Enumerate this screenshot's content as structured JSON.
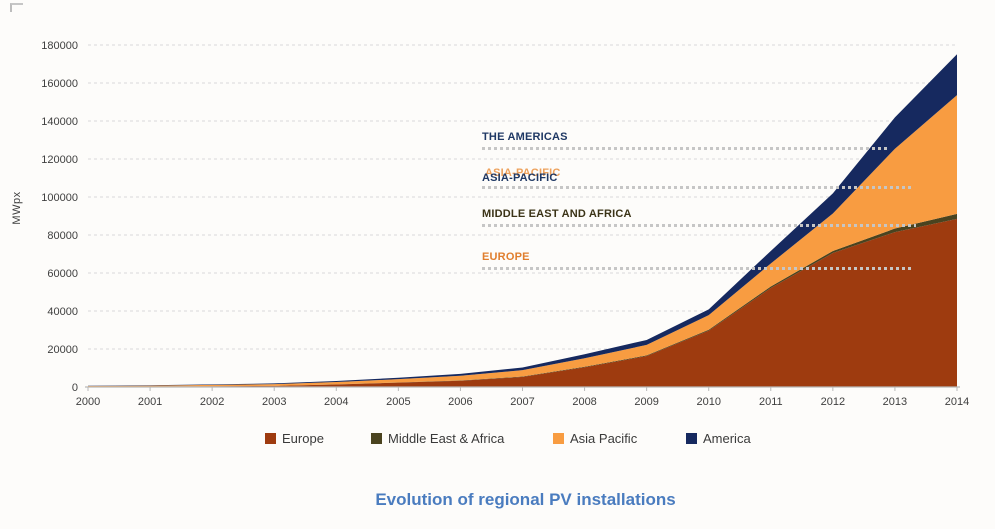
{
  "figure": {
    "title": "Evolution of regional PV installations",
    "title_color": "#4a7cbf"
  },
  "chart_data": {
    "type": "area",
    "stacked": true,
    "title": "Evolution of regional PV installations",
    "ylabel": "MWpx",
    "xlabel": "",
    "x": [
      2000,
      2001,
      2002,
      2003,
      2004,
      2005,
      2006,
      2007,
      2008,
      2009,
      2010,
      2011,
      2012,
      2013,
      2014
    ],
    "ylim": [
      0,
      180000
    ],
    "yticks": [
      0,
      20000,
      40000,
      60000,
      80000,
      100000,
      120000,
      140000,
      160000,
      180000
    ],
    "grid": "horizontal-dashed",
    "legend_position": "bottom",
    "series": [
      {
        "name": "Europe",
        "color": "#9e3b0f",
        "values": [
          150,
          250,
          400,
          600,
          1300,
          2300,
          3300,
          5300,
          10400,
          16300,
          29700,
          52100,
          70500,
          81500,
          88500
        ]
      },
      {
        "name": "Middle East & Africa",
        "color": "#4a431f",
        "values": [
          0,
          0,
          0,
          0,
          50,
          100,
          150,
          200,
          250,
          350,
          450,
          800,
          1100,
          1900,
          2600
        ]
      },
      {
        "name": "Asia Pacific",
        "color": "#f89c41",
        "values": [
          350,
          500,
          700,
          900,
          1250,
          1750,
          2450,
          3350,
          4500,
          5500,
          7700,
          12100,
          19700,
          42000,
          62500
        ]
      },
      {
        "name": "America",
        "color": "#16295f",
        "values": [
          150,
          200,
          280,
          400,
          550,
          750,
          1000,
          1400,
          2100,
          2600,
          3000,
          6600,
          10600,
          16500,
          21500
        ]
      }
    ],
    "annotations": [
      {
        "label": "THE AMERICAS",
        "color": "#1f3864",
        "approx_value": 125000
      },
      {
        "label": "ASIA-PACIFIC",
        "color": "#1f3864",
        "ghost_color": "#eda05a",
        "approx_value": 105000
      },
      {
        "label": "MIDDLE EAST AND AFRICA",
        "color": "#3b3317",
        "approx_value": 85000
      },
      {
        "label": "EUROPE",
        "color": "#e07e2e",
        "approx_value": 63000
      }
    ],
    "gridline_color": "#d9d9d9",
    "axis_color": "#b9b9b9",
    "tick_label_color": "#3f3f3f"
  }
}
